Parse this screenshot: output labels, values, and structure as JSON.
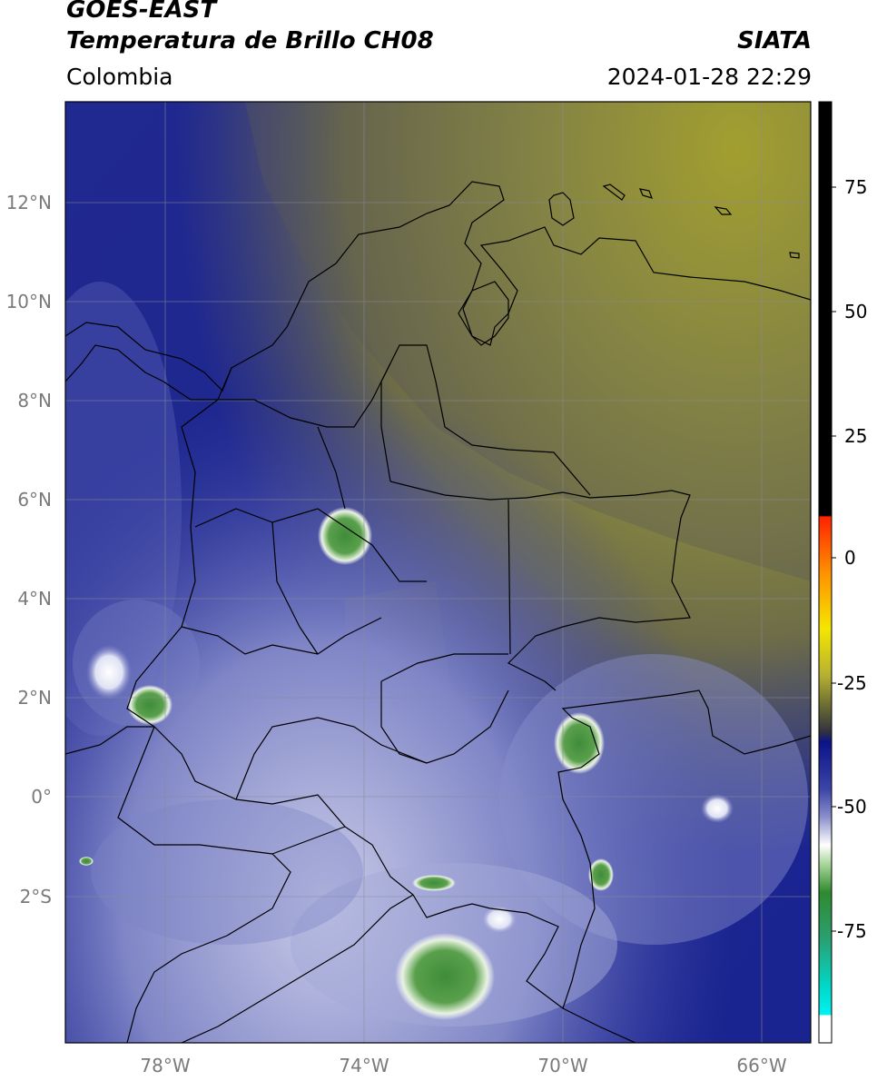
{
  "header": {
    "satellite": "GOES-EAST",
    "product": "Temperatura de Brillo CH08",
    "agency": "SIATA",
    "region": "Colombia",
    "timestamp": "2024-01-28 22:29"
  },
  "map": {
    "lat_labels": [
      "12°N",
      "10°N",
      "8°N",
      "6°N",
      "4°N",
      "2°N",
      "0°",
      "2°S"
    ],
    "lon_labels": [
      "78°W",
      "74°W",
      "70°W",
      "66°W"
    ]
  },
  "colorbar": {
    "tick_labels": [
      "75",
      "50",
      "25",
      "0",
      "-25",
      "-50",
      "-75"
    ],
    "colors": {
      "black": "#000000",
      "red": "#ff2a00",
      "orange": "#ff9900",
      "yellow": "#f2e500",
      "olive": "#6f6f32",
      "navy": "#0a1388",
      "lavender": "#b9bcde",
      "white": "#ffffff",
      "green": "#2f8a2f",
      "cyan": "#00dede"
    }
  }
}
